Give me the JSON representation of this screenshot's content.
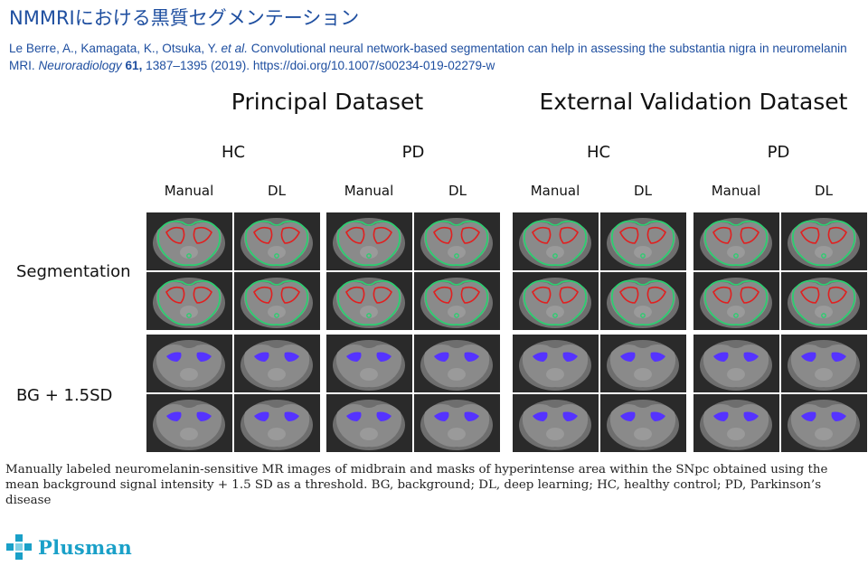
{
  "title": "NMMRIにおける黒質セグメンテーション",
  "citation": {
    "authors": "Le Berre, A., Kamagata, K., Otsuka, Y. ",
    "etal": "et al.",
    "text": " Convolutional neural network-based segmentation can help in assessing the substantia nigra in neuromelanin MRI. ",
    "journal": "Neuroradiology",
    "volume": " 61,",
    "rest": " 1387–1395 (2019). https://doi.org/10.1007/s00234-019-02279-w"
  },
  "datasets": [
    "Principal Dataset",
    "External Validation Dataset"
  ],
  "groups": [
    "HC",
    "PD",
    "HC",
    "PD"
  ],
  "columns": [
    "Manual",
    "DL",
    "Manual",
    "DL",
    "Manual",
    "DL",
    "Manual",
    "DL"
  ],
  "rows": [
    "Segmentation",
    "BG + 1.5SD"
  ],
  "caption": "Manually labeled neuromelanin-sensitive MR images of midbrain and masks of hyperintense area within the SNpc obtained using the mean background signal intensity + 1.5 SD as a threshold. BG, background; DL, deep learning; HC, healthy control; PD, Parkinson’s disease",
  "logo": {
    "text": "Plusman",
    "color": "#1aa0c8"
  },
  "colors": {
    "title": "#1f4fa0",
    "contour_midbrain": "#2ecc71",
    "contour_snpc": "#e02020",
    "mask": "#5533ff"
  }
}
